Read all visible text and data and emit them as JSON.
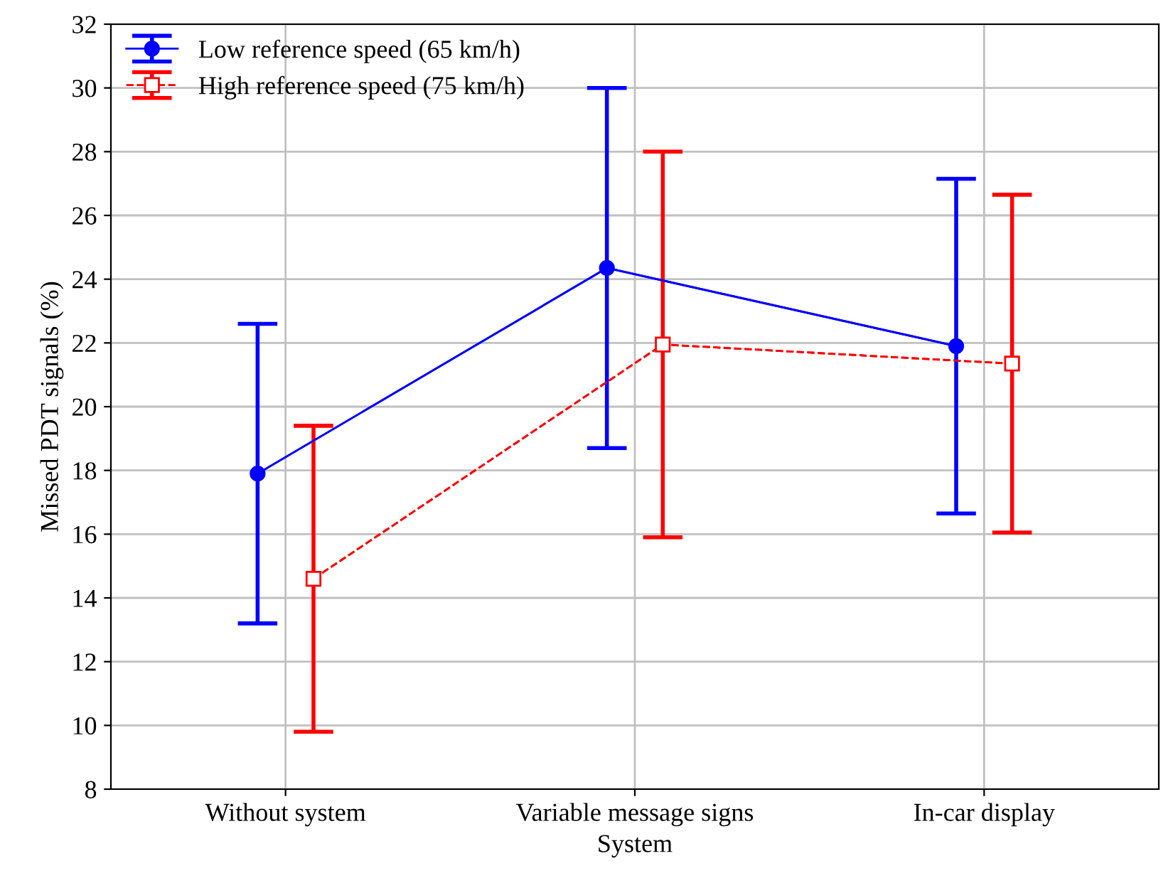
{
  "chart_data": {
    "type": "line",
    "xlabel": "System",
    "ylabel": "Missed PDT signals (%)",
    "categories": [
      "Without system",
      "Variable message signs",
      "In-car display"
    ],
    "series": [
      {
        "name": "Low reference speed (65 km/h)",
        "color": "#0000ff",
        "values": [
          17.9,
          24.35,
          21.9
        ],
        "errors": [
          4.7,
          5.65,
          5.25
        ],
        "marker": "circle",
        "line_style": "solid"
      },
      {
        "name": "High reference speed (75 km/h)",
        "color": "#ff0000",
        "values": [
          14.6,
          21.95,
          21.35
        ],
        "errors": [
          4.8,
          6.05,
          5.3
        ],
        "marker": "square",
        "line_style": "dashed"
      }
    ],
    "ylim": [
      8,
      32
    ],
    "yticks": [
      8,
      10,
      12,
      14,
      16,
      18,
      20,
      22,
      24,
      26,
      28,
      30,
      32
    ],
    "grid": true,
    "legend": "top left"
  }
}
